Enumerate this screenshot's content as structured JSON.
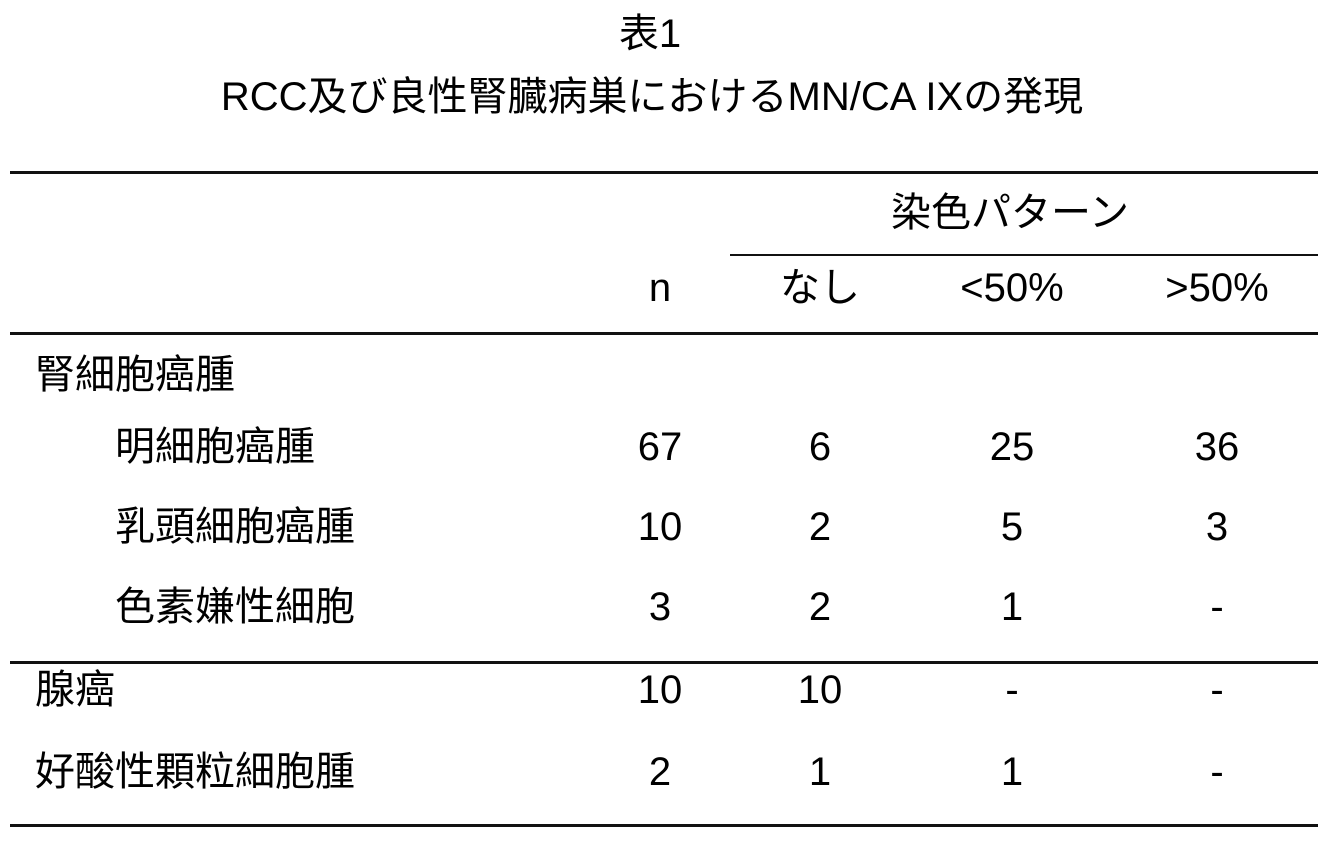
{
  "table": {
    "label": "表1",
    "title": "RCC及び良性腎臓病巣におけるMN/CA IXの発現",
    "group_header": "染色パターン",
    "columns": [
      "n",
      "なし",
      "<50%",
      ">50%"
    ],
    "rows": [
      {
        "label": "腎細胞癌腫",
        "indent": false,
        "values": [
          "",
          "",
          "",
          ""
        ]
      },
      {
        "label": "明細胞癌腫",
        "indent": true,
        "values": [
          "67",
          "6",
          "25",
          "36"
        ]
      },
      {
        "label": "乳頭細胞癌腫",
        "indent": true,
        "values": [
          "10",
          "2",
          "5",
          "3"
        ]
      },
      {
        "label": "色素嫌性細胞",
        "indent": true,
        "values": [
          "3",
          "2",
          "1",
          "-"
        ]
      },
      {
        "label": "腺癌",
        "indent": false,
        "values": [
          "10",
          "10",
          "-",
          "-"
        ]
      },
      {
        "label": "好酸性顆粒細胞腫",
        "indent": false,
        "values": [
          "2",
          "1",
          "1",
          "-"
        ]
      }
    ]
  }
}
